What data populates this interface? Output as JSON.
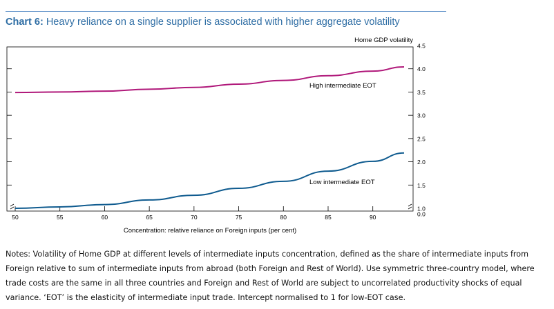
{
  "heading": {
    "label": "Chart 6:",
    "title": "Heavy reliance on a single supplier is associated with higher aggregate volatility"
  },
  "chart_data": {
    "type": "line",
    "title": "Heavy reliance on a single supplier is associated with higher aggregate volatility",
    "xlabel": "Concentration: relative reliance on Foreign inputs (per cent)",
    "ylabel": "Home GDP volatility",
    "xlim": [
      50,
      93.5
    ],
    "ylim": [
      0.0,
      4.5
    ],
    "y_axis_side": "right",
    "y_axis_break": true,
    "x_axis_break": true,
    "x_ticks": [
      50,
      55,
      60,
      65,
      70,
      75,
      80,
      85,
      90
    ],
    "y_ticks": [
      {
        "value": 0.0,
        "label": "0.0"
      },
      {
        "value": 1.0,
        "label": "1.0"
      },
      {
        "value": 1.5,
        "label": "1.5"
      },
      {
        "value": 2.0,
        "label": "2.0"
      },
      {
        "value": 2.5,
        "label": "2.5"
      },
      {
        "value": 3.0,
        "label": "3.0"
      },
      {
        "value": 3.5,
        "label": "3.5"
      },
      {
        "value": 4.0,
        "label": "4.0"
      },
      {
        "value": 4.5,
        "label": "4.5"
      }
    ],
    "grid": false,
    "series": [
      {
        "name": "High intermediate EOT",
        "color": "#b0187a",
        "x": [
          50,
          55,
          60,
          65,
          70,
          75,
          80,
          85,
          90,
          93.5
        ],
        "values": [
          3.49,
          3.5,
          3.52,
          3.56,
          3.6,
          3.67,
          3.75,
          3.85,
          3.95,
          4.04
        ]
      },
      {
        "name": "Low intermediate EOT",
        "color": "#0f5b8f",
        "x": [
          50,
          55,
          60,
          65,
          70,
          75,
          80,
          85,
          90,
          93.5
        ],
        "values": [
          1.0,
          1.03,
          1.08,
          1.18,
          1.28,
          1.43,
          1.58,
          1.8,
          2.01,
          2.19
        ]
      }
    ]
  },
  "notes": "Notes: Volatility of Home GDP at different levels of intermediate inputs concentration, defined as the share of intermediate inputs from Foreign relative to sum of intermediate inputs from abroad (both Foreign and Rest of World). Use symmetric three-country model, where trade costs are the same in all three countries and Foreign and Rest of World are subject to uncorrelated productivity shocks of equal variance. ‘EOT’ is the elasticity of intermediate input trade. Intercept normalised to 1 for low-EOT case."
}
